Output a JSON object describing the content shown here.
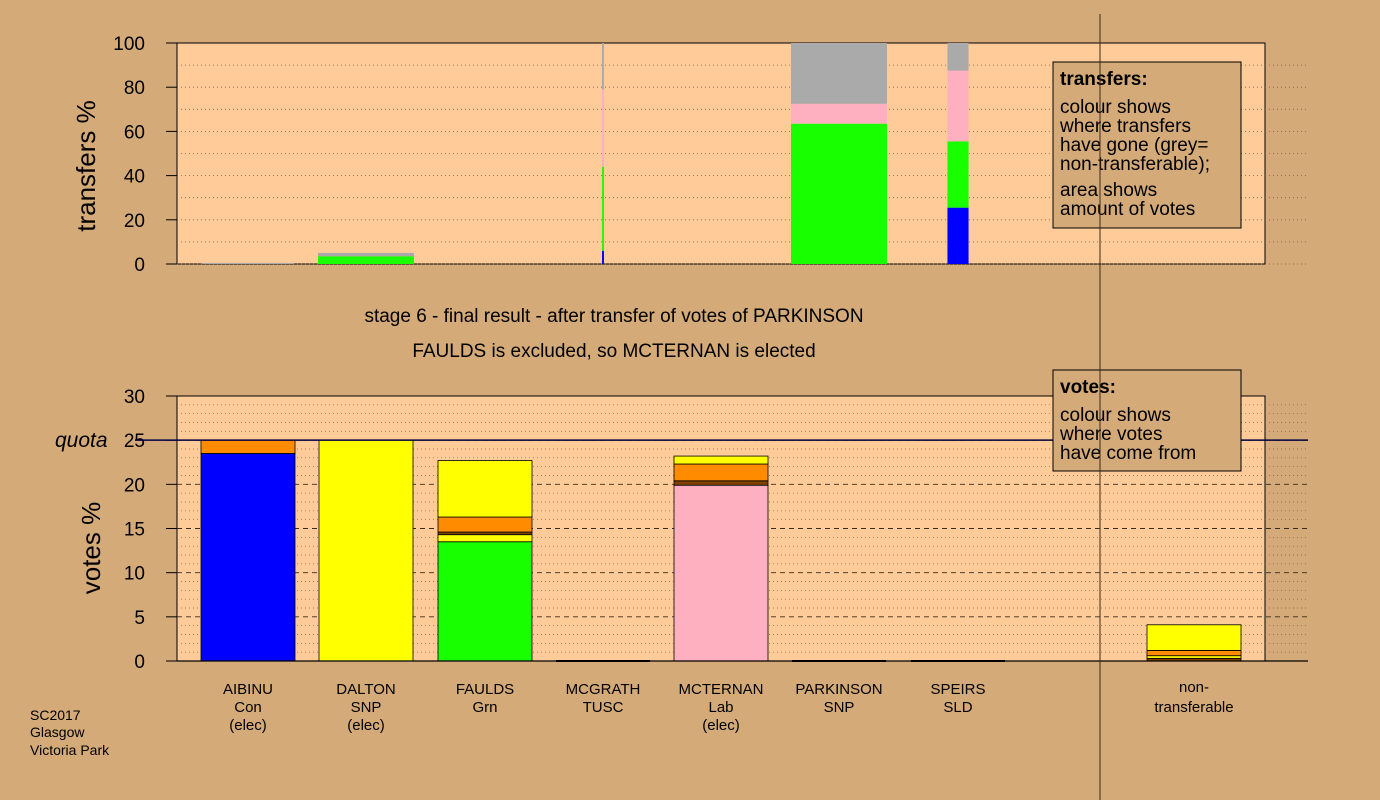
{
  "colors": {
    "background": "#d4aa78",
    "plot_bg": "#ffcc99",
    "blue": "#0000ff",
    "yellow": "#ffff00",
    "green": "#18ff00",
    "pink": "#ffb0c0",
    "orange": "#ff8c00",
    "brown": "#804000",
    "grey": "#aaaaaa"
  },
  "chart_data": [
    {
      "type": "bar",
      "ylabel": "transfers %",
      "ylim": [
        0,
        100
      ],
      "yticks": [
        0,
        20,
        40,
        60,
        80,
        100
      ],
      "grid": "dotted",
      "categories": [
        "AIBINU",
        "DALTON",
        "FAULDS",
        "MCGRATH",
        "MCTERNAN",
        "PARKINSON",
        "SPEIRS"
      ],
      "bar_widths_relative": [
        0.95,
        1,
        0,
        0.02,
        0,
        1,
        0.22
      ],
      "stacks": [
        [
          {
            "color": "grey",
            "value": 0.5
          }
        ],
        [
          {
            "color": "green",
            "value": 3.5
          },
          {
            "color": "grey",
            "value": 1.5
          }
        ],
        [],
        [
          {
            "color": "blue",
            "value": 6
          },
          {
            "color": "green",
            "value": 38
          },
          {
            "color": "pink",
            "value": 35
          },
          {
            "color": "grey",
            "value": 21
          }
        ],
        [],
        [
          {
            "color": "green",
            "value": 63.5
          },
          {
            "color": "pink",
            "value": 9
          },
          {
            "color": "grey",
            "value": 27.5
          }
        ],
        [
          {
            "color": "blue",
            "value": 25.5
          },
          {
            "color": "green",
            "value": 30
          },
          {
            "color": "pink",
            "value": 32
          },
          {
            "color": "grey",
            "value": 12.5
          }
        ]
      ],
      "legend_box": {
        "title": "transfers:",
        "line1": "colour shows",
        "line2": "where transfers",
        "line3": "have gone (grey=",
        "line4": "non-transferable);",
        "line5": "area shows",
        "line6": "amount of votes"
      }
    },
    {
      "type": "bar",
      "ylabel": "votes %",
      "ylim": [
        0,
        30
      ],
      "yticks": [
        0,
        5,
        10,
        15,
        20,
        25,
        30
      ],
      "quota_label": "quota",
      "quota_value": 25,
      "categories": [
        "AIBINU",
        "DALTON",
        "FAULDS",
        "MCGRATH",
        "MCTERNAN",
        "PARKINSON",
        "SPEIRS"
      ],
      "party": [
        "Con",
        "SNP",
        "Grn",
        "TUSC",
        "Lab",
        "SNP",
        "SLD"
      ],
      "status": [
        "(elec)",
        "(elec)",
        "",
        "",
        "(elec)",
        "",
        ""
      ],
      "stacks": [
        [
          {
            "color": "blue",
            "value": 23.5
          },
          {
            "color": "orange",
            "value": 1.5
          }
        ],
        [
          {
            "color": "yellow",
            "value": 25
          }
        ],
        [
          {
            "color": "green",
            "value": 13.5
          },
          {
            "color": "yellow",
            "value": 0.8
          },
          {
            "color": "brown",
            "value": 0.3
          },
          {
            "color": "orange",
            "value": 1.7
          },
          {
            "color": "yellow",
            "value": 6.4
          }
        ],
        [],
        [
          {
            "color": "pink",
            "value": 19.9
          },
          {
            "color": "brown",
            "value": 0.5
          },
          {
            "color": "orange",
            "value": 1.9
          },
          {
            "color": "yellow",
            "value": 0.9
          }
        ],
        [],
        []
      ],
      "nontransferable_label_1": "non-",
      "nontransferable_label_2": "transferable",
      "nontransferable_stack": [
        {
          "color": "brown",
          "value": 0.3
        },
        {
          "color": "yellow",
          "value": 0.3
        },
        {
          "color": "orange",
          "value": 0.6
        },
        {
          "color": "yellow",
          "value": 2.9
        }
      ],
      "legend_box": {
        "title": "votes:",
        "line1": "colour shows",
        "line2": "where votes",
        "line3": "have come from"
      }
    }
  ],
  "stage_title": "stage 6 - final result - after transfer of votes of PARKINSON",
  "stage_subtitle": "FAULDS is excluded, so MCTERNAN is elected",
  "footer": {
    "line1": "SC2017",
    "line2": "Glasgow",
    "line3": "Victoria Park"
  }
}
